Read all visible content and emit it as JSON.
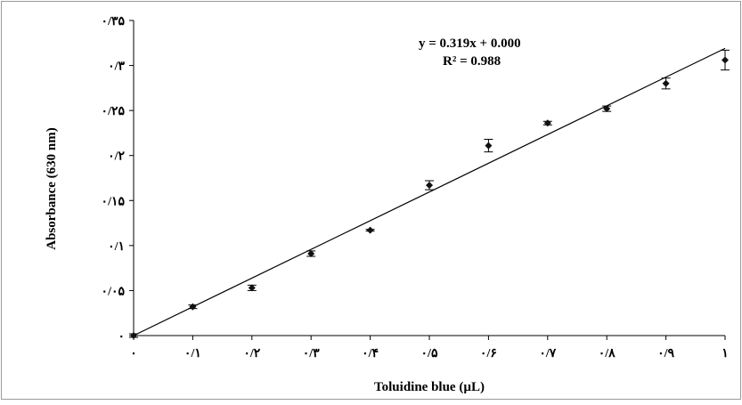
{
  "chart_data": {
    "type": "scatter",
    "xlabel": "Toluidine blue (µL)",
    "ylabel": "Absorbance (630 nm)",
    "xlim": [
      0,
      1
    ],
    "ylim": [
      0,
      0.35
    ],
    "x_ticks": [
      0,
      0.1,
      0.2,
      0.3,
      0.4,
      0.5,
      0.6,
      0.7,
      0.8,
      0.9,
      1
    ],
    "x_tick_labels": [
      "۰",
      "۰/۱",
      "۰/۲",
      "۰/۳",
      "۰/۴",
      "۰/۵",
      "۰/۶",
      "۰/۷",
      "۰/۸",
      "۰/۹",
      "۱"
    ],
    "y_ticks": [
      0,
      0.05,
      0.1,
      0.15,
      0.2,
      0.25,
      0.3,
      0.35
    ],
    "y_tick_labels": [
      "۰",
      "۰/۰۵",
      "۰/۱",
      "۰/۱۵",
      "۰/۲",
      "۰/۲۵",
      "۰/۳",
      "۰/۳۵"
    ],
    "series": [
      {
        "x": [
          0,
          0.1,
          0.2,
          0.3,
          0.4,
          0.5,
          0.6,
          0.7,
          0.8,
          0.9,
          1.0
        ],
        "y": [
          0.0,
          0.032,
          0.053,
          0.091,
          0.117,
          0.167,
          0.211,
          0.236,
          0.252,
          0.28,
          0.306
        ],
        "error": [
          0.002,
          0.002,
          0.003,
          0.003,
          0.001,
          0.005,
          0.007,
          0.002,
          0.003,
          0.006,
          0.011
        ]
      }
    ],
    "trendline": {
      "slope": 0.319,
      "intercept": 0.0
    },
    "equation_text": "y = 0.319x + 0.000",
    "r2_text": "R² =  0.988",
    "grid": false,
    "legend": "none",
    "colors": {
      "marker": "#111111",
      "line": "#111111",
      "border": "#9a9a9a"
    }
  }
}
